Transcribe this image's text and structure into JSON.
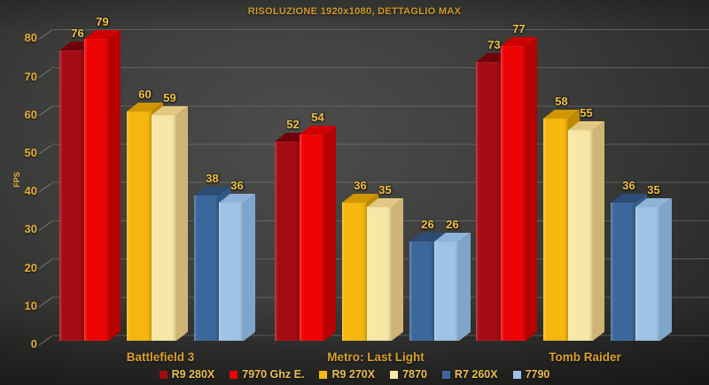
{
  "chart_data": {
    "type": "bar",
    "title": "RISOLUZIONE 1920x1080, DETTAGLIO MAX",
    "xlabel": "",
    "ylabel": "FPS",
    "ylim": [
      0,
      80
    ],
    "yticks": [
      0,
      10,
      20,
      30,
      40,
      50,
      60,
      70,
      80
    ],
    "grid": true,
    "grid_style": "3d-back-wall",
    "legend_position": "bottom",
    "categories": [
      "Battlefield 3",
      "Metro: Last Light",
      "Tomb Raider"
    ],
    "series": [
      {
        "name": "R9 280X",
        "values": [
          76,
          52,
          73
        ],
        "color": "#a50b12",
        "color_top": "#6f020a",
        "color_side": "#8c0710"
      },
      {
        "name": "7970 Ghz E.",
        "values": [
          79,
          54,
          77
        ],
        "color": "#ee0404",
        "color_top": "#d00000",
        "color_side": "#b50202"
      },
      {
        "name": "R9 270X",
        "values": [
          60,
          36,
          58
        ],
        "color": "#f7b70e",
        "color_top": "#d29700",
        "color_side": "#bd8a00"
      },
      {
        "name": "7870",
        "values": [
          59,
          35,
          55
        ],
        "color": "#f9e7a6",
        "color_top": "#e2c983",
        "color_side": "#cfb475"
      },
      {
        "name": "R7 260X",
        "values": [
          38,
          26,
          36
        ],
        "color": "#3a679c",
        "color_top": "#2b4d75",
        "color_side": "#325a88"
      },
      {
        "name": "7790",
        "values": [
          36,
          26,
          35
        ],
        "color": "#9dc3e6",
        "color_top": "#8db3d8",
        "color_side": "#7ea6cb"
      }
    ],
    "colors": {
      "background": "#3d3d3b",
      "grid_line": "#7d7d7d",
      "title_text": "#cf9a28",
      "axis_text": "#e4ad36",
      "value_text": "#f2c142",
      "category_text": "#d9a02c",
      "legend_text": "#eabf4e"
    }
  }
}
